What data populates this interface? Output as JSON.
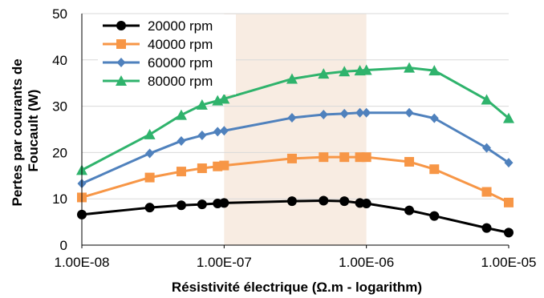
{
  "chart_data": {
    "type": "line",
    "xlabel": "Résistivité électrique (Ω.m - logarithm)",
    "ylabel_lines": [
      "Pertes par courants de",
      "Foucault (W)"
    ],
    "x_scale": "log",
    "xlim": [
      1e-08,
      1e-05
    ],
    "ylim": [
      0,
      50
    ],
    "x_tick_labels": [
      "1.00E-08",
      "1.00E-07",
      "1.00E-06",
      "1.00E-05"
    ],
    "y_tick_labels": [
      "0",
      "10",
      "20",
      "30",
      "40",
      "50"
    ],
    "grid": "horizontal",
    "legend_position": "top-left",
    "highlight_band_x": [
      1e-07,
      1e-06
    ],
    "colors": {
      "20000 rpm": "#000000",
      "40000 rpm": "#f79646",
      "60000 rpm": "#4f81bd",
      "80000 rpm": "#2fb36c",
      "band": "#f8ece2",
      "grid": "#d9d9d9"
    },
    "x": [
      1e-08,
      3e-08,
      5e-08,
      7e-08,
      9e-08,
      1e-07,
      3e-07,
      5e-07,
      7e-07,
      9e-07,
      1e-06,
      2e-06,
      3e-06,
      7e-06,
      1e-05
    ],
    "series": [
      {
        "name": "20000 rpm",
        "marker": "circle",
        "values": [
          6.6,
          8.1,
          8.6,
          8.8,
          9.0,
          9.1,
          9.5,
          9.6,
          9.5,
          9.1,
          9.0,
          7.5,
          6.3,
          3.7,
          2.7
        ]
      },
      {
        "name": "40000 rpm",
        "marker": "square",
        "values": [
          10.3,
          14.6,
          15.9,
          16.6,
          17.0,
          17.2,
          18.7,
          19.0,
          19.0,
          19.0,
          19.0,
          18.0,
          16.4,
          11.5,
          9.2
        ]
      },
      {
        "name": "60000 rpm",
        "marker": "diamond",
        "values": [
          13.3,
          19.8,
          22.5,
          23.7,
          24.5,
          24.7,
          27.5,
          28.2,
          28.4,
          28.6,
          28.6,
          28.6,
          27.4,
          21.0,
          17.8
        ]
      },
      {
        "name": "80000 rpm",
        "marker": "triangle",
        "values": [
          16.2,
          23.9,
          28.1,
          30.3,
          31.2,
          31.6,
          35.9,
          37.0,
          37.5,
          37.7,
          37.8,
          38.3,
          37.7,
          31.4,
          27.4
        ]
      }
    ]
  }
}
